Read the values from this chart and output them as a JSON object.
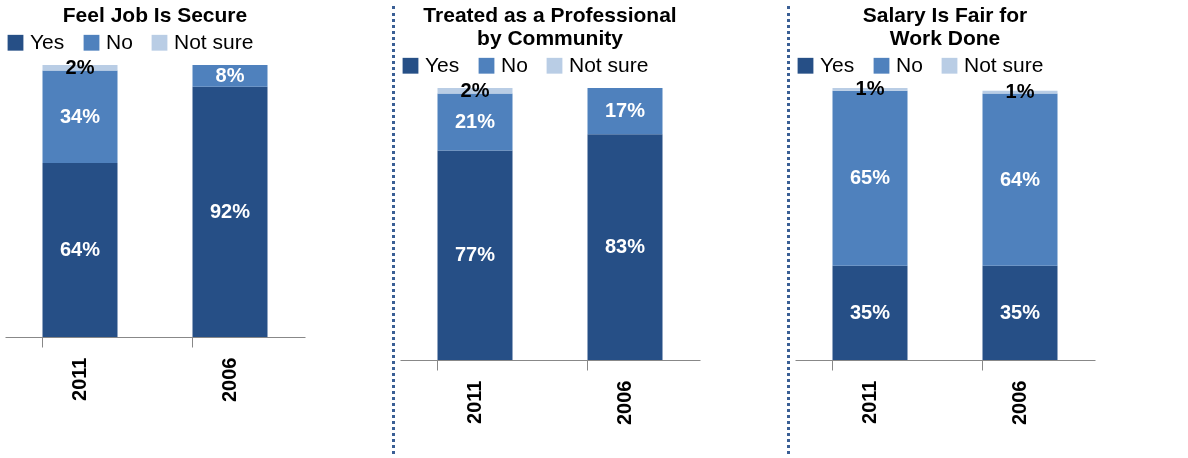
{
  "chart_data": [
    {
      "type": "bar",
      "title": "Feel Job Is Secure",
      "stacked": true,
      "legend": "top",
      "categories": [
        "2011",
        "2006"
      ],
      "series": [
        {
          "name": "Yes",
          "color": "#264f86",
          "values": [
            64,
            92
          ],
          "value_labels": [
            "64%",
            "92%"
          ]
        },
        {
          "name": "No",
          "color": "#4f81bd",
          "values": [
            34,
            8
          ],
          "value_labels": [
            "34%",
            "8%"
          ]
        },
        {
          "name": "Not sure",
          "color": "#b9cde5",
          "values": [
            2,
            null
          ],
          "value_labels": [
            "2%",
            null
          ]
        }
      ]
    },
    {
      "type": "bar",
      "title": "Treated as a Professional\nby Community",
      "stacked": true,
      "legend": "top",
      "categories": [
        "2011",
        "2006"
      ],
      "series": [
        {
          "name": "Yes",
          "color": "#264f86",
          "values": [
            77,
            83
          ],
          "value_labels": [
            "77%",
            "83%"
          ]
        },
        {
          "name": "No",
          "color": "#4f81bd",
          "values": [
            21,
            17
          ],
          "value_labels": [
            "21%",
            "17%"
          ]
        },
        {
          "name": "Not sure",
          "color": "#b9cde5",
          "values": [
            2,
            null
          ],
          "value_labels": [
            "2%",
            null
          ]
        }
      ]
    },
    {
      "type": "bar",
      "title": "Salary Is Fair for\nWork Done",
      "stacked": true,
      "legend": "top",
      "categories": [
        "2011",
        "2006"
      ],
      "series": [
        {
          "name": "Yes",
          "color": "#264f86",
          "values": [
            35,
            35
          ],
          "value_labels": [
            "35%",
            "35%"
          ]
        },
        {
          "name": "No",
          "color": "#4f81bd",
          "values": [
            65,
            64
          ],
          "value_labels": [
            "65%",
            "64%"
          ]
        },
        {
          "name": "Not sure",
          "color": "#b9cde5",
          "values": [
            1,
            1
          ],
          "value_labels": [
            "1%",
            "1%"
          ]
        }
      ]
    }
  ]
}
